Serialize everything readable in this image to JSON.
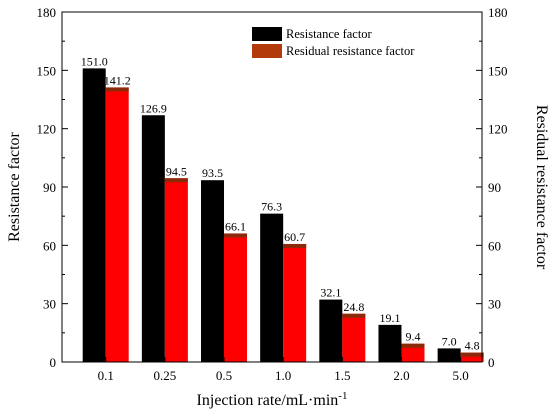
{
  "chart_data": {
    "type": "bar",
    "categories": [
      "0.1",
      "0.25",
      "0.5",
      "1.0",
      "1.5",
      "2.0",
      "5.0"
    ],
    "series": [
      {
        "name": "Resistance factor",
        "values": [
          151.0,
          126.9,
          93.5,
          76.3,
          32.1,
          19.1,
          7.0
        ],
        "labels": [
          "151.0",
          "126.9",
          "93.5",
          "76.3",
          "32.1",
          "19.1",
          "7.0"
        ],
        "color": "#000000"
      },
      {
        "name": "Residual resistance factor",
        "values": [
          141.2,
          94.5,
          66.1,
          60.7,
          24.8,
          9.4,
          4.8
        ],
        "labels": [
          "141.2",
          "94.5",
          "66.1",
          "60.7",
          "24.8",
          "9.4",
          "4.8"
        ],
        "color": "#ff0000",
        "legend_color": "#b33a0a"
      }
    ],
    "xlabel_main": "Injection rate/mL·min",
    "xlabel_sup": "-1",
    "ylabel_left": "Resistance factor",
    "ylabel_right": "Residual resistance factor",
    "ylim": [
      0,
      180
    ],
    "yticks": [
      0,
      30,
      60,
      90,
      120,
      150,
      180
    ],
    "ytick_labels": [
      "0",
      "30",
      "60",
      "90",
      "120",
      "150",
      "180"
    ],
    "grid": false,
    "legend_position": "top-right"
  }
}
